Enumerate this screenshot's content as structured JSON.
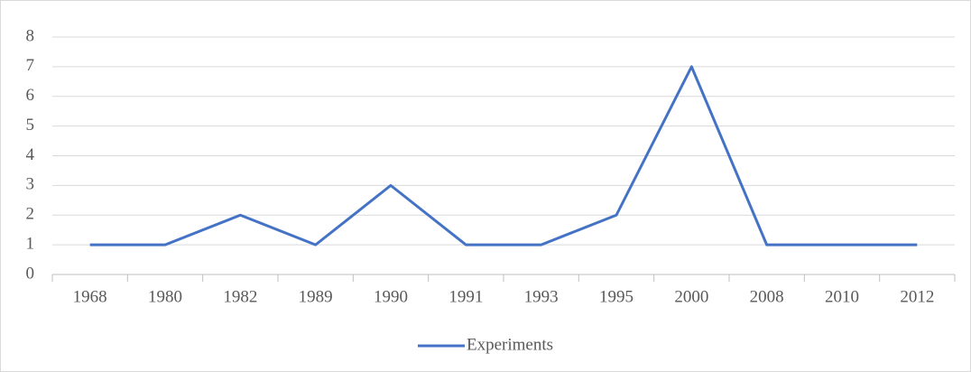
{
  "chart_data": {
    "type": "line",
    "categories": [
      "1968",
      "1980",
      "1982",
      "1989",
      "1990",
      "1991",
      "1993",
      "1995",
      "2000",
      "2008",
      "2010",
      "2012"
    ],
    "series": [
      {
        "name": "Experiments",
        "color": "#4472c4",
        "values": [
          1,
          1,
          2,
          1,
          3,
          1,
          1,
          2,
          7,
          1,
          1,
          1
        ]
      }
    ],
    "ylim": [
      0,
      8
    ],
    "yticks": [
      0,
      1,
      2,
      3,
      4,
      5,
      6,
      7,
      8
    ],
    "grid": true,
    "legend": "bottom"
  }
}
